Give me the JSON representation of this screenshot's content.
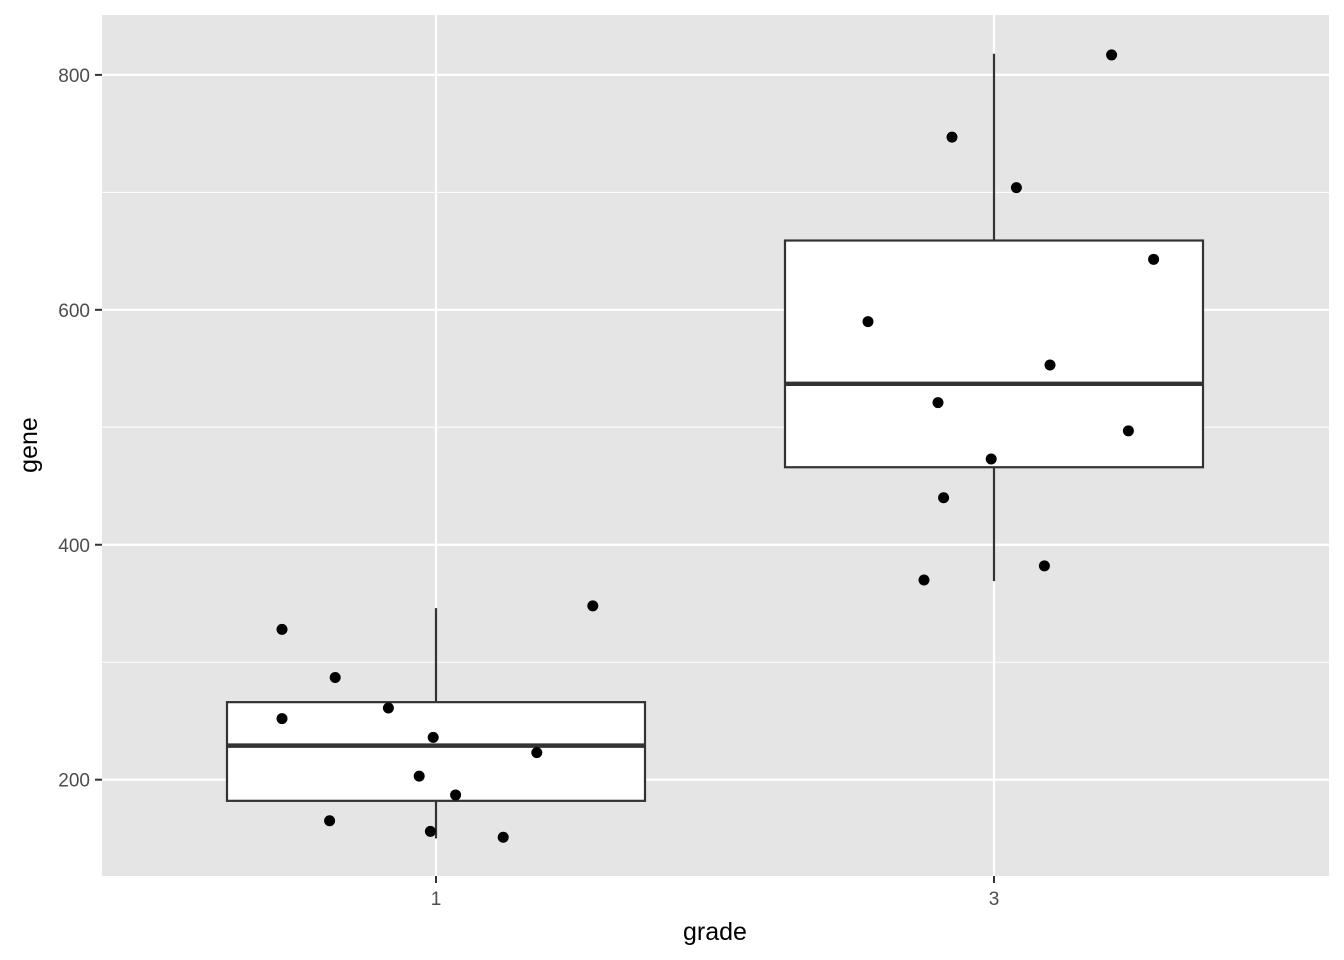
{
  "chart_data": {
    "type": "boxplot",
    "xlabel": "grade",
    "ylabel": "gene",
    "categories": [
      "1",
      "3"
    ],
    "ylim": [
      118,
      851
    ],
    "y_ticks": [
      200,
      400,
      600,
      800
    ],
    "y_tick_labels": [
      "200",
      "400",
      "600",
      "800"
    ],
    "grid": true,
    "theme": {
      "panel_bg": "#e5e5e5",
      "grid_color": "#ffffff",
      "box_fill": "#ffffff",
      "box_stroke": "#333333",
      "point_color": "#000000",
      "tick_color": "#333333"
    },
    "boxes": [
      {
        "category": "1",
        "q1": 182,
        "median": 229,
        "q3": 266,
        "whisker_low": 150,
        "whisker_high": 346
      },
      {
        "category": "3",
        "q1": 466,
        "median": 537,
        "q3": 659,
        "whisker_low": 369,
        "whisker_high": 818
      }
    ],
    "points": [
      {
        "category": "1",
        "jitter": -0.55,
        "y": 328
      },
      {
        "category": "1",
        "jitter": -0.36,
        "y": 287
      },
      {
        "category": "1",
        "jitter": -0.55,
        "y": 252
      },
      {
        "category": "1",
        "jitter": -0.17,
        "y": 261
      },
      {
        "category": "1",
        "jitter": -0.01,
        "y": 236
      },
      {
        "category": "1",
        "jitter": 0.36,
        "y": 223
      },
      {
        "category": "1",
        "jitter": -0.06,
        "y": 203
      },
      {
        "category": "1",
        "jitter": 0.07,
        "y": 187
      },
      {
        "category": "1",
        "jitter": -0.38,
        "y": 165
      },
      {
        "category": "1",
        "jitter": -0.02,
        "y": 156
      },
      {
        "category": "1",
        "jitter": 0.24,
        "y": 151
      },
      {
        "category": "1",
        "jitter": 0.56,
        "y": 348
      },
      {
        "category": "3",
        "jitter": 0.42,
        "y": 817
      },
      {
        "category": "3",
        "jitter": -0.15,
        "y": 747
      },
      {
        "category": "3",
        "jitter": 0.08,
        "y": 704
      },
      {
        "category": "3",
        "jitter": 0.57,
        "y": 643
      },
      {
        "category": "3",
        "jitter": -0.45,
        "y": 590
      },
      {
        "category": "3",
        "jitter": 0.2,
        "y": 553
      },
      {
        "category": "3",
        "jitter": -0.2,
        "y": 521
      },
      {
        "category": "3",
        "jitter": 0.48,
        "y": 497
      },
      {
        "category": "3",
        "jitter": -0.01,
        "y": 473
      },
      {
        "category": "3",
        "jitter": -0.18,
        "y": 440
      },
      {
        "category": "3",
        "jitter": 0.18,
        "y": 382
      },
      {
        "category": "3",
        "jitter": -0.25,
        "y": 370
      }
    ]
  }
}
